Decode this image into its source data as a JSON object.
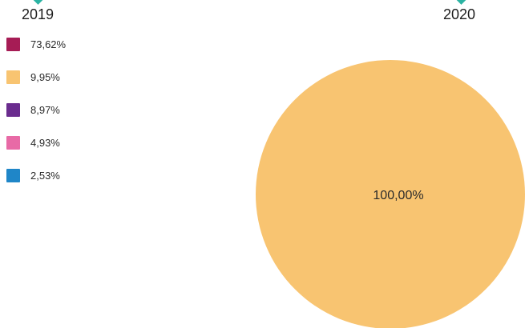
{
  "years": {
    "left": "2019",
    "right": "2020"
  },
  "legend": [
    {
      "label": "73,62%",
      "color": "#a61c55"
    },
    {
      "label": "9,95%",
      "color": "#f8c471"
    },
    {
      "label": "8,97%",
      "color": "#6a2c8e"
    },
    {
      "label": "4,93%",
      "color": "#e86aa6"
    },
    {
      "label": "2,53%",
      "color": "#1f86c8"
    }
  ],
  "accent_color": "#2bb3a3",
  "chart_data": [
    {
      "type": "pie",
      "year": "2019",
      "slices": [
        {
          "label": "73,62%",
          "value": 73.62,
          "color": "#a61c55"
        },
        {
          "label": "9,95%",
          "value": 9.95,
          "color": "#f8c471"
        },
        {
          "label": "8,97%",
          "value": 8.97,
          "color": "#6a2c8e"
        },
        {
          "label": "4,93%",
          "value": 4.93,
          "color": "#e86aa6"
        },
        {
          "label": "2,53%",
          "value": 2.53,
          "color": "#1f86c8"
        }
      ]
    },
    {
      "type": "pie",
      "year": "2020",
      "slices": [
        {
          "label": "100,00%",
          "value": 100.0,
          "color": "#f8c471"
        }
      ]
    }
  ]
}
